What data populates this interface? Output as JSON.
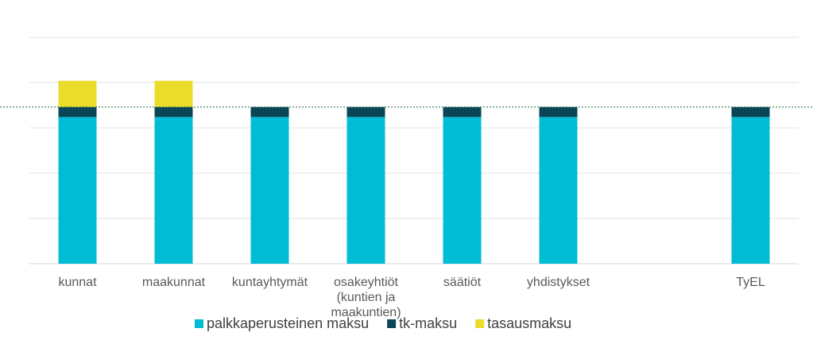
{
  "chart_data": {
    "type": "bar",
    "stacked": true,
    "categories": [
      "kunnat",
      "maakunnat",
      "kuntayhtymät",
      [
        "osakeyhtiöt",
        "(kuntien ja",
        "maakuntien)"
      ],
      "säätiöt",
      "yhdistykset",
      "",
      "TyEL"
    ],
    "series": [
      {
        "name": "palkkaperusteinen maksu",
        "color": "#00BCD4",
        "values": [
          16.2,
          16.2,
          16.2,
          16.2,
          16.2,
          16.2,
          null,
          16.2
        ]
      },
      {
        "name": "tk-maksu",
        "color": "#0B4558",
        "values": [
          1.1,
          1.1,
          1.1,
          1.1,
          1.1,
          1.1,
          null,
          1.1
        ]
      },
      {
        "name": "tasausmaksu",
        "color": "#EBDC2A",
        "values": [
          2.9,
          2.9,
          0,
          0,
          0,
          0,
          null,
          0
        ]
      }
    ],
    "reference_line": {
      "value": 17.3,
      "style": "dotted",
      "color": "#1E6B3A"
    },
    "ylim": [
      0,
      25
    ],
    "y_gridlines": [
      0,
      5,
      10,
      15,
      20,
      25
    ],
    "grid": true,
    "y_tick_labels_shown": false,
    "legend_position": "bottom",
    "title": "",
    "xlabel": "",
    "ylabel": ""
  }
}
